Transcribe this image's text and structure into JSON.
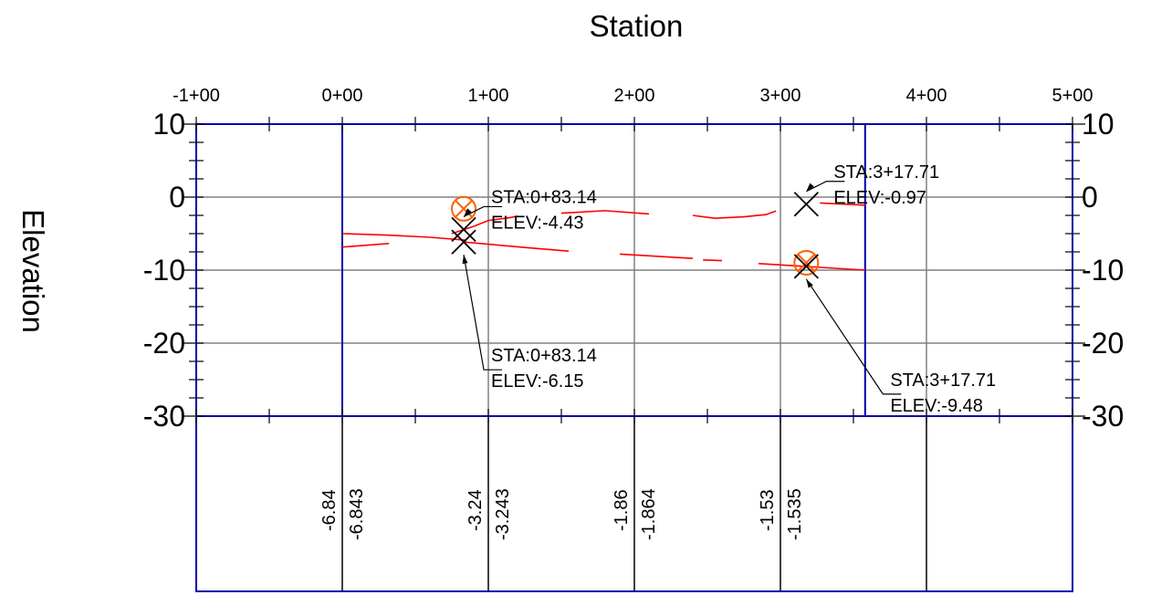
{
  "chart_data": {
    "type": "line",
    "title": "",
    "xlabel": "Station",
    "ylabel": "Elevation",
    "xlim": [
      -100,
      500
    ],
    "ylim": [
      -30,
      10
    ],
    "grid": true,
    "x_ticks": [
      {
        "value": -100,
        "label": "-1+00"
      },
      {
        "value": 0,
        "label": "0+00"
      },
      {
        "value": 100,
        "label": "1+00"
      },
      {
        "value": 200,
        "label": "2+00"
      },
      {
        "value": 300,
        "label": "3+00"
      },
      {
        "value": 400,
        "label": "4+00"
      },
      {
        "value": 500,
        "label": "5+00"
      }
    ],
    "y_ticks_left": [
      {
        "value": 10,
        "label": "10"
      },
      {
        "value": 0,
        "label": "0"
      },
      {
        "value": -10,
        "label": "-10"
      },
      {
        "value": -20,
        "label": "-20"
      },
      {
        "value": -30,
        "label": "-30"
      }
    ],
    "y_ticks_right": [
      {
        "value": 10,
        "label": "10"
      },
      {
        "value": 0,
        "label": "0"
      },
      {
        "value": -10,
        "label": "-10"
      },
      {
        "value": -20,
        "label": "-20"
      },
      {
        "value": -30,
        "label": "-30"
      }
    ],
    "series": [
      {
        "color": "#ff0000",
        "segments": [
          [
            [
              0,
              -6.84
            ],
            [
              32,
              -6.35
            ]
          ],
          [
            [
              0,
              -5.0
            ],
            [
              30,
              -5.2
            ],
            [
              60,
              -5.5
            ],
            [
              85,
              -5.9
            ]
          ],
          [
            [
              75,
              -5.0
            ],
            [
              90,
              -4.0
            ],
            [
              100,
              -3.2
            ],
            [
              115,
              -2.8
            ],
            [
              120,
              -2.6
            ]
          ],
          [
            [
              150,
              -2.2
            ],
            [
              180,
              -1.86
            ],
            [
              210,
              -2.3
            ]
          ],
          [
            [
              240,
              -2.5
            ],
            [
              255,
              -2.9
            ],
            [
              275,
              -2.7
            ],
            [
              290,
              -2.4
            ],
            [
              297,
              -1.9
            ]
          ],
          [
            [
              327,
              -0.8
            ],
            [
              358,
              -1.1
            ]
          ]
        ]
      },
      {
        "color": "#ff0000",
        "segments": [
          [
            [
              83,
              -6.15
            ],
            [
              125,
              -6.9
            ],
            [
              155,
              -7.4
            ]
          ],
          [
            [
              190,
              -7.8
            ],
            [
              240,
              -8.4
            ]
          ],
          [
            [
              247,
              -8.6
            ],
            [
              260,
              -8.7
            ]
          ],
          [
            [
              285,
              -9.1
            ],
            [
              358,
              -10.0
            ]
          ]
        ]
      }
    ],
    "markers": [
      {
        "x": 83.14,
        "y": -1.6,
        "symbol": "circle-x",
        "color": "#ff6000"
      },
      {
        "x": 83.14,
        "y": -4.43,
        "symbol": "x",
        "color": "#000000"
      },
      {
        "x": 83.14,
        "y": -6.15,
        "symbol": "x",
        "color": "#000000"
      },
      {
        "x": 317.71,
        "y": -0.97,
        "symbol": "x",
        "color": "#000000"
      },
      {
        "x": 317.71,
        "y": -9.0,
        "symbol": "circle-x",
        "color": "#ff6000"
      },
      {
        "x": 317.71,
        "y": -9.48,
        "symbol": "x",
        "color": "#000000"
      }
    ],
    "annotations": [
      {
        "sta": "STA:0+83.14",
        "elev": "ELEV:-4.43",
        "target": [
          83.14,
          -4.43
        ],
        "placement": "upper-right"
      },
      {
        "sta": "STA:0+83.14",
        "elev": "ELEV:-6.15",
        "target": [
          83.14,
          -6.15
        ],
        "placement": "lower-right"
      },
      {
        "sta": "STA:3+17.71",
        "elev": "ELEV:-0.97",
        "target": [
          317.71,
          -0.97
        ],
        "placement": "upper-right"
      },
      {
        "sta": "STA:3+17.71",
        "elev": "ELEV:-9.48",
        "target": [
          317.71,
          -9.48
        ],
        "placement": "lower-right"
      }
    ],
    "bottom_band": {
      "values": [
        {
          "x": 0,
          "left": "-6.84",
          "right": "-6.843"
        },
        {
          "x": 100,
          "left": "-3.24",
          "right": "-3.243"
        },
        {
          "x": 200,
          "left": "-1.86",
          "right": "-1.864"
        },
        {
          "x": 300,
          "left": "-1.53",
          "right": "-1.535"
        }
      ]
    },
    "profile_extent": [
      0,
      358
    ],
    "colors": {
      "frame": "#0000aa",
      "grid": "#808080",
      "profile": "#ff0000",
      "marker_circle": "#ff6000"
    }
  }
}
